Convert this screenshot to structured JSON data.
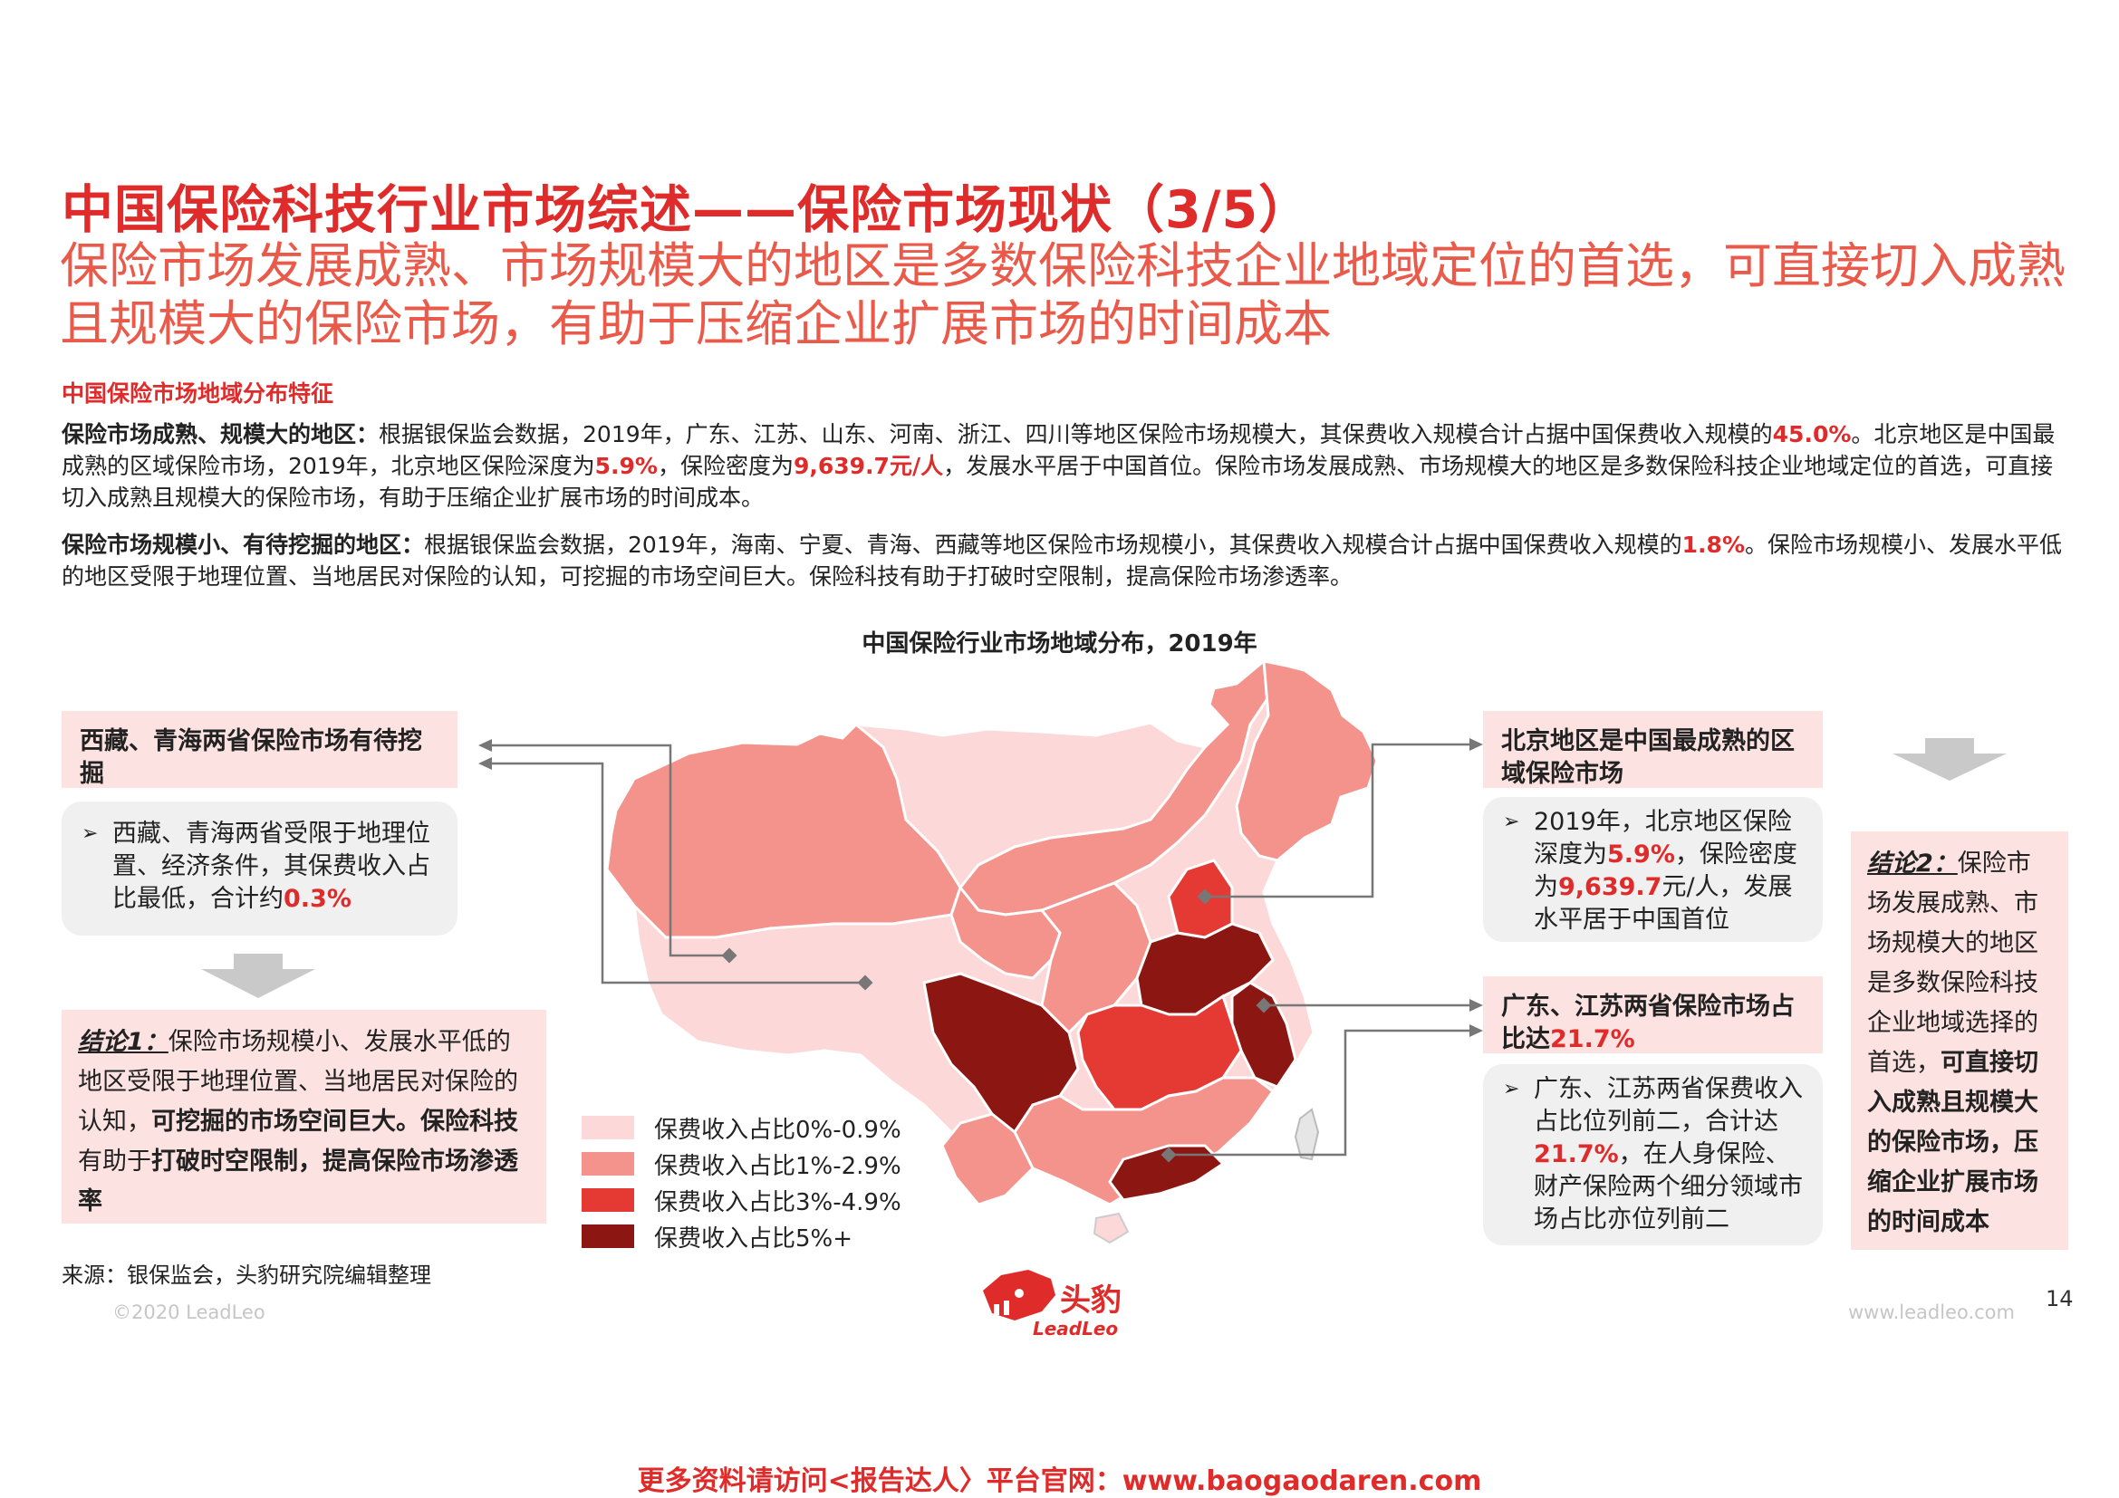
{
  "title": "中国保险科技行业市场综述——保险市场现状（3/5）",
  "subtitle": "保险市场发展成熟、市场规模大的地区是多数保险科技企业地域定位的首选，可直接切入成熟且规模大的保险市场，有助于压缩企业扩展市场的时间成本",
  "section_label": "中国保险市场地域分布特征",
  "para1": {
    "lead": "保险市场成熟、规模大的地区：",
    "t1": "根据银保监会数据，2019年，广东、江苏、山东、河南、浙江、四川等地区保险市场规模大，其保费收入规模合计占据中国保费收入规模的",
    "n1": "45.0%",
    "t2": "。北京地区是中国最成熟的区域保险市场，2019年，北京地区保险深度为",
    "n2": "5.9%",
    "t3": "，保险密度为",
    "n3": "9,639.7元/人",
    "t4": "，发展水平居于中国首位。保险市场发展成熟、市场规模大的地区是多数保险科技企业地域定位的首选，可直接切入成熟且规模大的保险市场，有助于压缩企业扩展市场的时间成本。"
  },
  "para2": {
    "lead": "保险市场规模小、有待挖掘的地区：",
    "t1": "根据银保监会数据，2019年，海南、宁夏、青海、西藏等地区保险市场规模小，其保费收入规模合计占据中国保费收入规模的",
    "n1": "1.8%",
    "t2": "。保险市场规模小、发展水平低的地区受限于地理位置、当地居民对保险的认知，可挖掘的市场空间巨大。保险科技有助于打破时空限制，提高保险市场渗透率。"
  },
  "chart_title": "中国保险行业市场地域分布，2019年",
  "left": {
    "head": "西藏、青海两省保险市场有待挖掘",
    "bullet_t1": "西藏、青海两省受限于地理位置、经济条件，其保费收入占比最低，合计约",
    "bullet_n1": "0.3%",
    "conc_title": "结论1：",
    "conc_t1": "保险市场规模小、发展水平低的地区受限于地理位置、当地居民对保险的认知，",
    "conc_b1": "可挖掘的市场空间巨大。保险科技",
    "conc_t2": "有助于",
    "conc_b2": "打破时空限制，提高保险市场渗透率"
  },
  "right": {
    "head1": "北京地区是中国最成熟的区域保险市场",
    "b1_t1": "2019年，北京地区保险深度为",
    "b1_n1": "5.9%",
    "b1_t2": "，保险密度为",
    "b1_n2": "9,639.7",
    "b1_t3": "元/人，发展水平居于中国首位",
    "head2_t": "广东、江苏两省保险市场占比达",
    "head2_n": "21.7%",
    "b2_t1": "广东、江苏两省保费收入占比位列前二，合计达",
    "b2_n1": "21.7%",
    "b2_t2": "，在人身保险、财产保险两个细分领域市场占比亦位列前二"
  },
  "conclusion2": {
    "title": "结论2：",
    "t1": "保险市场发展成熟、市场规模大的地区是多数保险科技企业地域选择的首选，",
    "b1": "可直接切入成熟且规模大的保险市场，压缩企业扩展市场的时间成本"
  },
  "legend": [
    {
      "label": "保费收入占比0%-0.9%",
      "color": "#fcd9d8"
    },
    {
      "label": "保费收入占比1%-2.9%",
      "color": "#f4928c"
    },
    {
      "label": "保费收入占比3%-4.9%",
      "color": "#e53a33"
    },
    {
      "label": "保费收入占比5%+",
      "color": "#8c1712"
    }
  ],
  "source": "来源：银保监会，头豹研究院编辑整理",
  "copyright": "©2020 LeadLeo",
  "website": "www.leadleo.com",
  "page_number": "14",
  "logo": {
    "cn": "头豹",
    "en": "LeadLeo"
  },
  "footer": "更多资料请访问<报告达人〉平台官网：www.baogaodaren.com"
}
